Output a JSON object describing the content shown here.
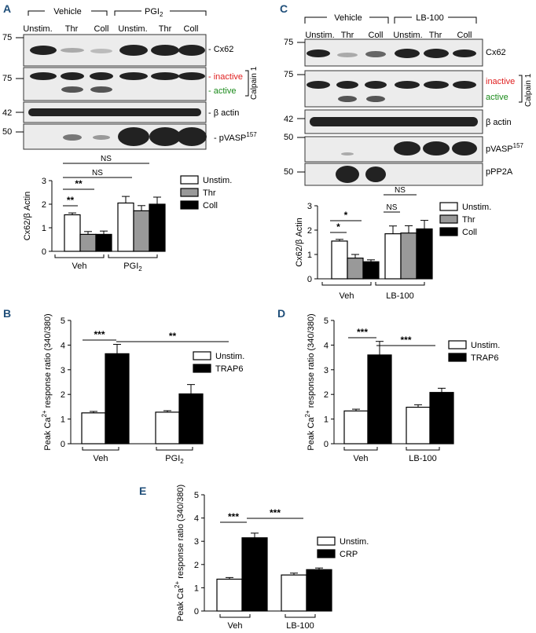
{
  "panels": {
    "A": {
      "letter": "A",
      "groups": [
        "Vehicle",
        "PGI",
        "2"
      ],
      "lanes": [
        "Unstim.",
        "Thr",
        "Coll",
        "Unstim.",
        "Thr",
        "Coll"
      ],
      "mw": [
        "75",
        "75",
        "42",
        "50"
      ],
      "bands": {
        "cx62": "Cx62",
        "inactive": "inactive",
        "active": "active",
        "calpain": "Calpain 1",
        "actin": "β actin",
        "pvasp": "pVASP",
        "pvasp_sup": "157"
      }
    },
    "C": {
      "letter": "C",
      "groups": [
        "Vehicle",
        "LB-100"
      ],
      "lanes": [
        "Unstim.",
        "Thr",
        "Coll",
        "Unstim.",
        "Thr",
        "Coll"
      ],
      "mw": [
        "75",
        "75",
        "42",
        "50",
        "50"
      ],
      "bands": {
        "cx62": "Cx62",
        "inactive": "inactive",
        "active": "active",
        "calpain": "Calpain 1",
        "actin": "β actin",
        "pvasp": "pVASP",
        "pvasp_sup": "157",
        "ppp2a": "pPP2A"
      }
    },
    "B": {
      "letter": "B"
    },
    "D": {
      "letter": "D"
    },
    "E": {
      "letter": "E"
    }
  },
  "colors": {
    "unstim": "#ffffff",
    "thr": "#999999",
    "stim": "#000000",
    "inactive": "#e02020",
    "active": "#1a8a1a"
  },
  "chart_data": [
    {
      "id": "A",
      "type": "bar",
      "ylabel": "Cx62/β Actin",
      "ylim": [
        0,
        3
      ],
      "yticks": [
        0,
        1,
        2,
        3
      ],
      "groups": [
        "Veh",
        "PGI",
        "2"
      ],
      "series": [
        {
          "name": "Unstim.",
          "values": [
            1.55,
            2.05
          ],
          "errors": [
            0.08,
            0.28
          ]
        },
        {
          "name": "Thr",
          "values": [
            0.72,
            1.72
          ],
          "errors": [
            0.12,
            0.22
          ]
        },
        {
          "name": "Coll",
          "values": [
            0.72,
            2.0
          ],
          "errors": [
            0.14,
            0.3
          ]
        }
      ],
      "significance": [
        "**",
        "**",
        "NS",
        "NS"
      ],
      "legend": "right"
    },
    {
      "id": "C",
      "type": "bar",
      "ylabel": "Cx62/β Actin",
      "ylim": [
        0,
        3
      ],
      "yticks": [
        0,
        1,
        2,
        3
      ],
      "groups": [
        "Veh",
        "LB-100"
      ],
      "series": [
        {
          "name": "Unstim.",
          "values": [
            1.55,
            1.85
          ],
          "errors": [
            0.07,
            0.32
          ]
        },
        {
          "name": "Thr",
          "values": [
            0.85,
            1.88
          ],
          "errors": [
            0.15,
            0.3
          ]
        },
        {
          "name": "Coll",
          "values": [
            0.7,
            2.05
          ],
          "errors": [
            0.08,
            0.35
          ]
        }
      ],
      "significance": [
        "*",
        "*",
        "NS",
        "NS"
      ],
      "legend": "right"
    },
    {
      "id": "B",
      "type": "bar",
      "ylabel": [
        "Peak Ca",
        "2+",
        " response ratio (340/380)"
      ],
      "ylim": [
        0,
        5
      ],
      "yticks": [
        0,
        1,
        2,
        3,
        4,
        5
      ],
      "groups": [
        "Veh",
        "PGI",
        "2"
      ],
      "series": [
        {
          "name": "Unstim.",
          "values": [
            1.25,
            1.28
          ],
          "errors": [
            0.06,
            0.06
          ]
        },
        {
          "name": "TRAP6",
          "values": [
            3.65,
            2.02
          ],
          "errors": [
            0.38,
            0.38
          ]
        }
      ],
      "significance": [
        "***",
        "**"
      ],
      "legend": "right"
    },
    {
      "id": "D",
      "type": "bar",
      "ylabel": [
        "Peak Ca",
        "2+",
        " response ratio (340/380)"
      ],
      "ylim": [
        0,
        5
      ],
      "yticks": [
        0,
        1,
        2,
        3,
        4,
        5
      ],
      "groups": [
        "Veh",
        "LB-100"
      ],
      "series": [
        {
          "name": "Unstim.",
          "values": [
            1.33,
            1.48
          ],
          "errors": [
            0.07,
            0.1
          ]
        },
        {
          "name": "TRAP6",
          "values": [
            3.6,
            2.08
          ],
          "errors": [
            0.55,
            0.17
          ]
        }
      ],
      "significance": [
        "***",
        "***"
      ],
      "legend": "right"
    },
    {
      "id": "E",
      "type": "bar",
      "ylabel": [
        "Peak Ca",
        "2+",
        " response ratio (340/380)"
      ],
      "ylim": [
        0,
        5
      ],
      "yticks": [
        0,
        1,
        2,
        3,
        4,
        5
      ],
      "groups": [
        "Veh",
        "LB-100"
      ],
      "series": [
        {
          "name": "Unstim.",
          "values": [
            1.37,
            1.55
          ],
          "errors": [
            0.07,
            0.08
          ]
        },
        {
          "name": "CRP",
          "values": [
            3.15,
            1.78
          ],
          "errors": [
            0.2,
            0.07
          ]
        }
      ],
      "significance": [
        "***",
        "***"
      ],
      "legend": "right"
    }
  ]
}
